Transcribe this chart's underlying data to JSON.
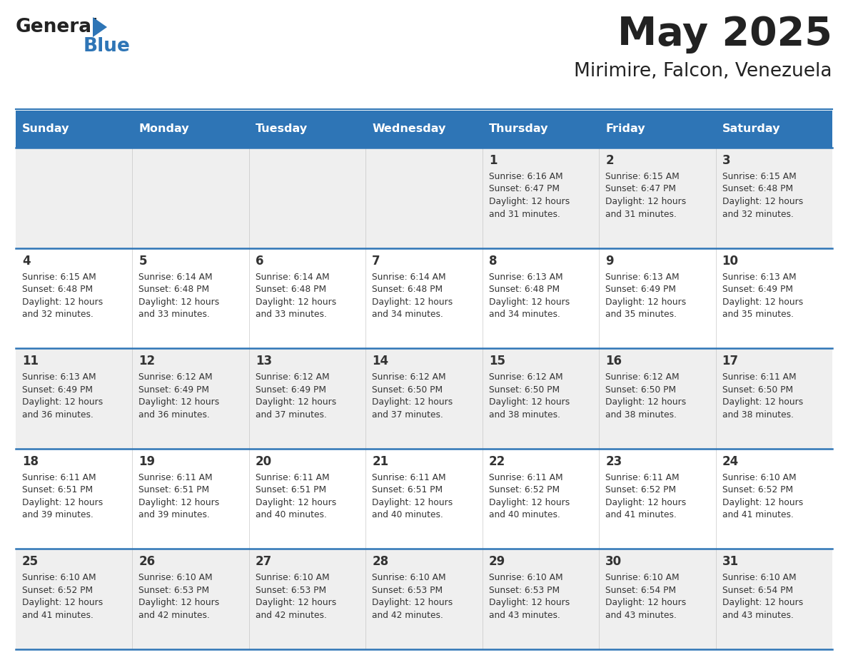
{
  "title": "May 2025",
  "subtitle": "Mirimire, Falcon, Venezuela",
  "header_bg": "#2E75B6",
  "header_text_color": "#FFFFFF",
  "cell_bg_odd": "#EFEFEF",
  "cell_bg_even": "#FFFFFF",
  "text_color": "#333333",
  "line_color": "#2E75B6",
  "days_of_week": [
    "Sunday",
    "Monday",
    "Tuesday",
    "Wednesday",
    "Thursday",
    "Friday",
    "Saturday"
  ],
  "calendar_data": [
    [
      {
        "day": "",
        "sunrise": "",
        "sunset": "",
        "daylight": ""
      },
      {
        "day": "",
        "sunrise": "",
        "sunset": "",
        "daylight": ""
      },
      {
        "day": "",
        "sunrise": "",
        "sunset": "",
        "daylight": ""
      },
      {
        "day": "",
        "sunrise": "",
        "sunset": "",
        "daylight": ""
      },
      {
        "day": "1",
        "sunrise": "6:16 AM",
        "sunset": "6:47 PM",
        "daylight": "12 hours and 31 minutes."
      },
      {
        "day": "2",
        "sunrise": "6:15 AM",
        "sunset": "6:47 PM",
        "daylight": "12 hours and 31 minutes."
      },
      {
        "day": "3",
        "sunrise": "6:15 AM",
        "sunset": "6:48 PM",
        "daylight": "12 hours and 32 minutes."
      }
    ],
    [
      {
        "day": "4",
        "sunrise": "6:15 AM",
        "sunset": "6:48 PM",
        "daylight": "12 hours and 32 minutes."
      },
      {
        "day": "5",
        "sunrise": "6:14 AM",
        "sunset": "6:48 PM",
        "daylight": "12 hours and 33 minutes."
      },
      {
        "day": "6",
        "sunrise": "6:14 AM",
        "sunset": "6:48 PM",
        "daylight": "12 hours and 33 minutes."
      },
      {
        "day": "7",
        "sunrise": "6:14 AM",
        "sunset": "6:48 PM",
        "daylight": "12 hours and 34 minutes."
      },
      {
        "day": "8",
        "sunrise": "6:13 AM",
        "sunset": "6:48 PM",
        "daylight": "12 hours and 34 minutes."
      },
      {
        "day": "9",
        "sunrise": "6:13 AM",
        "sunset": "6:49 PM",
        "daylight": "12 hours and 35 minutes."
      },
      {
        "day": "10",
        "sunrise": "6:13 AM",
        "sunset": "6:49 PM",
        "daylight": "12 hours and 35 minutes."
      }
    ],
    [
      {
        "day": "11",
        "sunrise": "6:13 AM",
        "sunset": "6:49 PM",
        "daylight": "12 hours and 36 minutes."
      },
      {
        "day": "12",
        "sunrise": "6:12 AM",
        "sunset": "6:49 PM",
        "daylight": "12 hours and 36 minutes."
      },
      {
        "day": "13",
        "sunrise": "6:12 AM",
        "sunset": "6:49 PM",
        "daylight": "12 hours and 37 minutes."
      },
      {
        "day": "14",
        "sunrise": "6:12 AM",
        "sunset": "6:50 PM",
        "daylight": "12 hours and 37 minutes."
      },
      {
        "day": "15",
        "sunrise": "6:12 AM",
        "sunset": "6:50 PM",
        "daylight": "12 hours and 38 minutes."
      },
      {
        "day": "16",
        "sunrise": "6:12 AM",
        "sunset": "6:50 PM",
        "daylight": "12 hours and 38 minutes."
      },
      {
        "day": "17",
        "sunrise": "6:11 AM",
        "sunset": "6:50 PM",
        "daylight": "12 hours and 38 minutes."
      }
    ],
    [
      {
        "day": "18",
        "sunrise": "6:11 AM",
        "sunset": "6:51 PM",
        "daylight": "12 hours and 39 minutes."
      },
      {
        "day": "19",
        "sunrise": "6:11 AM",
        "sunset": "6:51 PM",
        "daylight": "12 hours and 39 minutes."
      },
      {
        "day": "20",
        "sunrise": "6:11 AM",
        "sunset": "6:51 PM",
        "daylight": "12 hours and 40 minutes."
      },
      {
        "day": "21",
        "sunrise": "6:11 AM",
        "sunset": "6:51 PM",
        "daylight": "12 hours and 40 minutes."
      },
      {
        "day": "22",
        "sunrise": "6:11 AM",
        "sunset": "6:52 PM",
        "daylight": "12 hours and 40 minutes."
      },
      {
        "day": "23",
        "sunrise": "6:11 AM",
        "sunset": "6:52 PM",
        "daylight": "12 hours and 41 minutes."
      },
      {
        "day": "24",
        "sunrise": "6:10 AM",
        "sunset": "6:52 PM",
        "daylight": "12 hours and 41 minutes."
      }
    ],
    [
      {
        "day": "25",
        "sunrise": "6:10 AM",
        "sunset": "6:52 PM",
        "daylight": "12 hours and 41 minutes."
      },
      {
        "day": "26",
        "sunrise": "6:10 AM",
        "sunset": "6:53 PM",
        "daylight": "12 hours and 42 minutes."
      },
      {
        "day": "27",
        "sunrise": "6:10 AM",
        "sunset": "6:53 PM",
        "daylight": "12 hours and 42 minutes."
      },
      {
        "day": "28",
        "sunrise": "6:10 AM",
        "sunset": "6:53 PM",
        "daylight": "12 hours and 42 minutes."
      },
      {
        "day": "29",
        "sunrise": "6:10 AM",
        "sunset": "6:53 PM",
        "daylight": "12 hours and 43 minutes."
      },
      {
        "day": "30",
        "sunrise": "6:10 AM",
        "sunset": "6:54 PM",
        "daylight": "12 hours and 43 minutes."
      },
      {
        "day": "31",
        "sunrise": "6:10 AM",
        "sunset": "6:54 PM",
        "daylight": "12 hours and 43 minutes."
      }
    ]
  ]
}
